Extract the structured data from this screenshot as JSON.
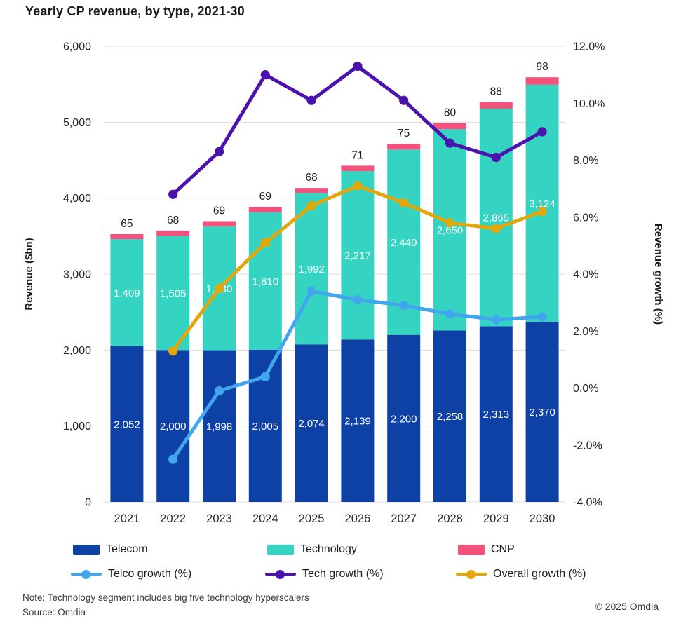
{
  "title": "Yearly CP revenue, by type, 2021-30",
  "footer": {
    "note": "Note: Technology segment includes big five technology hyperscalers",
    "source": "Source: Omdia",
    "copyright": "© 2025 Omdia"
  },
  "colors": {
    "telecom": "#0d41a6",
    "technology": "#35d4c2",
    "cnp": "#f2527c",
    "telco_growth": "#41a6ee",
    "tech_growth": "#4c12ae",
    "overall_growth": "#e3a70e",
    "grid": "#dcdcdc",
    "text": "#262626"
  },
  "chart_data": {
    "type": "combo: stacked bar + line",
    "title": "Yearly CP revenue, by type, 2021-30",
    "categories": [
      "2021",
      "2022",
      "2023",
      "2024",
      "2025",
      "2026",
      "2027",
      "2028",
      "2029",
      "2030"
    ],
    "bar_series": [
      {
        "name": "Telecom",
        "color_key": "telecom",
        "label_position": "inside",
        "values": [
          2052,
          2000,
          1998,
          2005,
          2074,
          2139,
          2200,
          2258,
          2313,
          2370
        ]
      },
      {
        "name": "Technology",
        "color_key": "technology",
        "label_position": "inside",
        "values": [
          1409,
          1505,
          1630,
          1810,
          1992,
          2217,
          2440,
          2650,
          2865,
          3124
        ]
      },
      {
        "name": "CNP",
        "color_key": "cnp",
        "label_position": "above",
        "values": [
          65,
          68,
          69,
          69,
          68,
          71,
          75,
          80,
          88,
          98
        ]
      }
    ],
    "line_series": [
      {
        "name": "Telco growth (%)",
        "color_key": "telco_growth",
        "values": [
          null,
          -2.5,
          -0.1,
          0.4,
          3.4,
          3.1,
          2.9,
          2.6,
          2.4,
          2.5
        ]
      },
      {
        "name": "Tech growth (%)",
        "color_key": "tech_growth",
        "values": [
          null,
          6.8,
          8.3,
          11.0,
          10.1,
          11.3,
          10.1,
          8.6,
          8.1,
          9.0
        ]
      },
      {
        "name": "Overall growth (%)",
        "color_key": "overall_growth",
        "values": [
          null,
          1.3,
          3.5,
          5.1,
          6.4,
          7.1,
          6.5,
          5.8,
          5.6,
          6.2
        ]
      }
    ],
    "left_axis": {
      "label": "Revenue ($bn)",
      "min": 0,
      "max": 6000,
      "tick_values": [
        0,
        1000,
        2000,
        3000,
        4000,
        5000,
        6000
      ],
      "tick_labels": [
        "0",
        "1,000",
        "2,000",
        "3,000",
        "4,000",
        "5,000",
        "6,000"
      ]
    },
    "right_axis": {
      "label": "Revenue growth (%)",
      "min": -4,
      "max": 12,
      "tick_values": [
        -4,
        -2,
        0,
        2,
        4,
        6,
        8,
        10,
        12
      ],
      "tick_labels": [
        "-4.0%",
        "-2.0%",
        "0.0%",
        "2.0%",
        "4.0%",
        "6.0%",
        "8.0%",
        "10.0%",
        "12.0%"
      ]
    },
    "grid": "horizontal",
    "legend_position": "bottom"
  },
  "legend": {
    "items": [
      {
        "label": "Telecom",
        "marker": "rect",
        "color_key": "telecom"
      },
      {
        "label": "Technology",
        "marker": "rect",
        "color_key": "technology"
      },
      {
        "label": "CNP",
        "marker": "rect",
        "color_key": "cnp"
      },
      {
        "label": "Telco growth (%)",
        "marker": "line",
        "color_key": "telco_growth"
      },
      {
        "label": "Tech growth (%)",
        "marker": "line",
        "color_key": "tech_growth"
      },
      {
        "label": "Overall growth (%)",
        "marker": "line",
        "color_key": "overall_growth"
      }
    ]
  }
}
